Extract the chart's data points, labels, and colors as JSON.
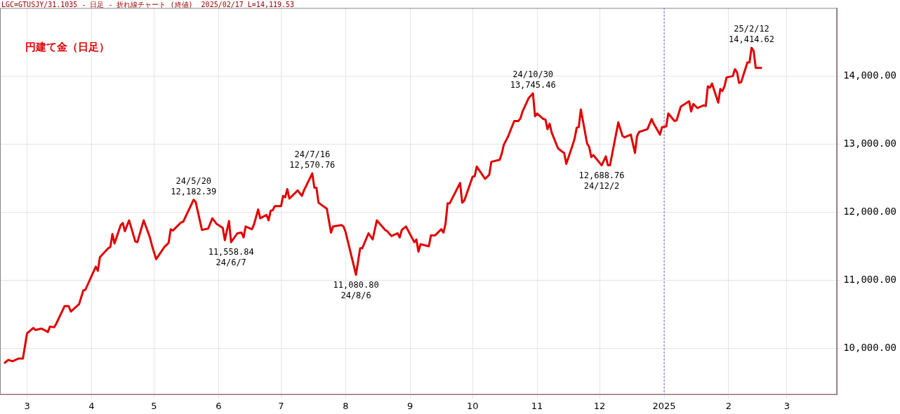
{
  "chart_data": {
    "type": "line",
    "title": "円建て金（日足）",
    "subtitle": "LGC=GTUSJY/31.1035 - 日足 - 折れ線チャート (終値)  2025/02/17 L=14,119.53",
    "x": [
      "2024-02-19",
      "2024-02-21",
      "2024-02-23",
      "2024-02-26",
      "2024-02-28",
      "2024-03-01",
      "2024-03-04",
      "2024-03-05",
      "2024-03-08",
      "2024-03-11",
      "2024-03-12",
      "2024-03-14",
      "2024-03-15",
      "2024-03-19",
      "2024-03-21",
      "2024-03-22",
      "2024-03-26",
      "2024-03-28",
      "2024-03-29",
      "2024-04-03",
      "2024-04-04",
      "2024-04-05",
      "2024-04-09",
      "2024-04-10",
      "2024-04-11",
      "2024-04-12",
      "2024-04-15",
      "2024-04-16",
      "2024-04-17",
      "2024-04-19",
      "2024-04-22",
      "2024-04-23",
      "2024-04-26",
      "2024-04-29",
      "2024-04-30",
      "2024-05-02",
      "2024-05-06",
      "2024-05-08",
      "2024-05-09",
      "2024-05-10",
      "2024-05-14",
      "2024-05-15",
      "2024-05-20",
      "2024-05-21",
      "2024-05-24",
      "2024-05-27",
      "2024-05-29",
      "2024-05-31",
      "2024-06-03",
      "2024-06-04",
      "2024-06-06",
      "2024-06-07",
      "2024-06-10",
      "2024-06-12",
      "2024-06-13",
      "2024-06-14",
      "2024-06-17",
      "2024-06-18",
      "2024-06-20",
      "2024-06-21",
      "2024-06-24",
      "2024-06-25",
      "2024-06-26",
      "2024-06-27",
      "2024-06-28",
      "2024-07-01",
      "2024-07-02",
      "2024-07-03",
      "2024-07-04",
      "2024-07-05",
      "2024-07-09",
      "2024-07-11",
      "2024-07-12",
      "2024-07-16",
      "2024-07-17",
      "2024-07-18",
      "2024-07-19",
      "2024-07-23",
      "2024-07-25",
      "2024-07-26",
      "2024-07-30",
      "2024-07-31",
      "2024-08-01",
      "2024-08-06",
      "2024-08-08",
      "2024-08-09",
      "2024-08-12",
      "2024-08-14",
      "2024-08-16",
      "2024-08-20",
      "2024-08-21",
      "2024-08-23",
      "2024-08-26",
      "2024-08-27",
      "2024-08-28",
      "2024-08-30",
      "2024-09-03",
      "2024-09-04",
      "2024-09-05",
      "2024-09-06",
      "2024-09-10",
      "2024-09-11",
      "2024-09-13",
      "2024-09-16",
      "2024-09-17",
      "2024-09-18",
      "2024-09-19",
      "2024-09-20",
      "2024-09-25",
      "2024-09-26",
      "2024-09-27",
      "2024-10-01",
      "2024-10-02",
      "2024-10-03",
      "2024-10-07",
      "2024-10-09",
      "2024-10-10",
      "2024-10-14",
      "2024-10-15",
      "2024-10-16",
      "2024-10-18",
      "2024-10-21",
      "2024-10-23",
      "2024-10-24",
      "2024-10-25",
      "2024-10-28",
      "2024-10-30",
      "2024-10-31",
      "2024-11-01",
      "2024-11-04",
      "2024-11-05",
      "2024-11-06",
      "2024-11-07",
      "2024-11-08",
      "2024-11-11",
      "2024-11-13",
      "2024-11-14",
      "2024-11-15",
      "2024-11-18",
      "2024-11-19",
      "2024-11-20",
      "2024-11-21",
      "2024-11-22",
      "2024-11-25",
      "2024-11-26",
      "2024-11-27",
      "2024-11-28",
      "2024-12-02",
      "2024-12-04",
      "2024-12-05",
      "2024-12-06",
      "2024-12-10",
      "2024-12-12",
      "2024-12-13",
      "2024-12-16",
      "2024-12-18",
      "2024-12-19",
      "2024-12-20",
      "2024-12-24",
      "2024-12-26",
      "2024-12-27",
      "2024-12-30",
      "2024-12-31",
      "2025-01-02",
      "2025-01-03",
      "2025-01-06",
      "2025-01-07",
      "2025-01-09",
      "2025-01-13",
      "2025-01-14",
      "2025-01-15",
      "2025-01-17",
      "2025-01-20",
      "2025-01-21",
      "2025-01-22",
      "2025-01-23",
      "2025-01-24",
      "2025-01-27",
      "2025-01-28",
      "2025-01-29",
      "2025-01-30",
      "2025-01-31",
      "2025-02-03",
      "2025-02-04",
      "2025-02-05",
      "2025-02-06",
      "2025-02-07",
      "2025-02-10",
      "2025-02-11",
      "2025-02-12",
      "2025-02-13",
      "2025-02-14",
      "2025-02-17"
    ],
    "series": [
      {
        "color": "#e00000",
        "values": [
          9780,
          9830,
          9810,
          9850,
          9850,
          10220,
          10300,
          10270,
          10290,
          10240,
          10320,
          10310,
          10360,
          10620,
          10620,
          10540,
          10650,
          10850,
          10860,
          11200,
          11140,
          11340,
          11470,
          11490,
          11680,
          11540,
          11810,
          11840,
          11720,
          11880,
          11570,
          11560,
          11880,
          11630,
          11510,
          11310,
          11490,
          11550,
          11750,
          11730,
          11850,
          11860,
          12182.39,
          12150,
          11740,
          11760,
          11910,
          11830,
          11770,
          11590,
          11870,
          11558.84,
          11690,
          11700,
          11630,
          11790,
          11750,
          11820,
          12040,
          11910,
          11960,
          11880,
          12020,
          12030,
          12090,
          12090,
          12240,
          12220,
          12340,
          12200,
          12320,
          12240,
          12320,
          12570.76,
          12360,
          12360,
          12140,
          12050,
          11700,
          11790,
          11810,
          11790,
          11710,
          11080.8,
          11470,
          11470,
          11690,
          11600,
          11880,
          11740,
          11720,
          11650,
          11690,
          11630,
          11740,
          11790,
          11560,
          11600,
          11420,
          11530,
          11500,
          11660,
          11660,
          11750,
          11700,
          11830,
          12130,
          12130,
          12430,
          12140,
          12170,
          12520,
          12530,
          12670,
          12490,
          12550,
          12740,
          12770,
          12860,
          12990,
          13110,
          13340,
          13340,
          13380,
          13480,
          13680,
          13745.46,
          13410,
          13450,
          13370,
          13360,
          13220,
          13300,
          13170,
          12940,
          12890,
          12870,
          12710,
          12980,
          13080,
          13240,
          13250,
          13510,
          13010,
          12960,
          12810,
          12840,
          12688.76,
          12820,
          12690,
          12690,
          13320,
          13120,
          13100,
          13140,
          12870,
          13120,
          13180,
          13220,
          13370,
          13300,
          13140,
          13250,
          13260,
          13450,
          13340,
          13350,
          13550,
          13630,
          13480,
          13590,
          13530,
          13570,
          13560,
          13850,
          13830,
          13890,
          13610,
          13810,
          13780,
          13850,
          13980,
          14000,
          14100,
          14060,
          13900,
          13910,
          14200,
          14200,
          14414.62,
          14370,
          14120,
          14119.53
        ]
      }
    ],
    "xlim": [
      "2024-02-17",
      "2025-03-25"
    ],
    "xticks": [
      {
        "value": "2024-03-01",
        "label": "3"
      },
      {
        "value": "2024-04-01",
        "label": "4"
      },
      {
        "value": "2024-05-01",
        "label": "5"
      },
      {
        "value": "2024-06-01",
        "label": "6"
      },
      {
        "value": "2024-07-01",
        "label": "7"
      },
      {
        "value": "2024-08-01",
        "label": "8"
      },
      {
        "value": "2024-09-01",
        "label": "9"
      },
      {
        "value": "2024-10-01",
        "label": "10"
      },
      {
        "value": "2024-11-01",
        "label": "11"
      },
      {
        "value": "2024-12-01",
        "label": "12"
      },
      {
        "value": "2025-01-01",
        "label": "2025"
      },
      {
        "value": "2025-02-01",
        "label": "2"
      },
      {
        "value": "2025-03-01",
        "label": "3"
      }
    ],
    "ylim": [
      9320,
      15000
    ],
    "yticks": [
      {
        "value": 10000,
        "label": "10,000.00"
      },
      {
        "value": 11000,
        "label": "11,000.00"
      },
      {
        "value": 12000,
        "label": "12,000.00"
      },
      {
        "value": 13000,
        "label": "13,000.00"
      },
      {
        "value": 14000,
        "label": "14,000.00"
      }
    ],
    "ref_lines": [
      {
        "axis": "x",
        "value": "2025-01-01",
        "color": "#3344aa",
        "line_style": "dotted"
      }
    ],
    "annotations": [
      {
        "text": "24/5/20\n12,182.39",
        "x": "2024-05-20",
        "y": 12182.39
      },
      {
        "text": "11,558.84\n24/6/7",
        "x": "2024-06-07",
        "y": 11558.84
      },
      {
        "text": "24/7/16\n12,570.76",
        "x": "2024-07-16",
        "y": 12570.76
      },
      {
        "text": "11,080.80\n24/8/6",
        "x": "2024-08-06",
        "y": 11080.8
      },
      {
        "text": "24/10/30\n13,745.46",
        "x": "2024-10-30",
        "y": 13745.46
      },
      {
        "text": "12,688.76\n24/12/2",
        "x": "2024-12-02",
        "y": 12688.76
      },
      {
        "text": "25/2/12\n14,414.62",
        "x": "2025-02-12",
        "y": 14414.62
      }
    ],
    "grid": true,
    "legend": false,
    "marker": "none",
    "line_style": "solid"
  }
}
